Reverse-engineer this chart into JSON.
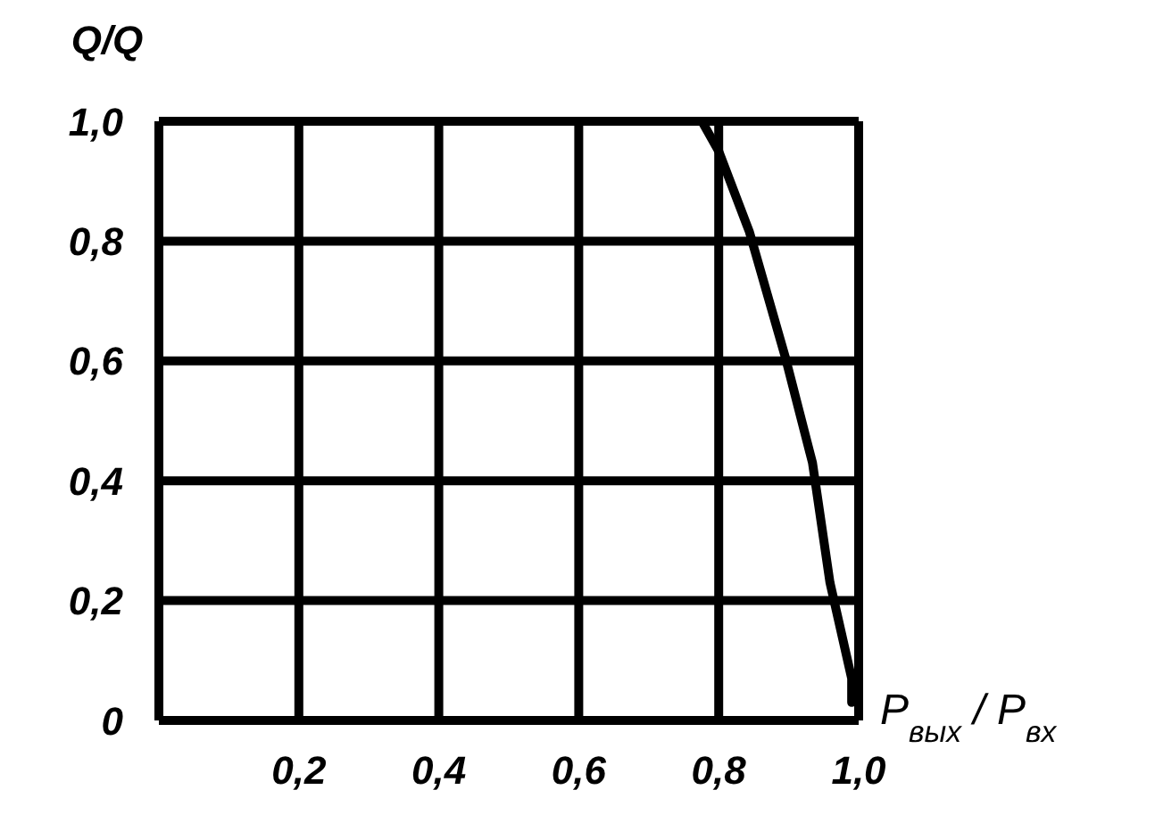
{
  "chart_data": {
    "type": "line",
    "ylabel": "Q/Q",
    "xlabel": "P$_{вых}$ / P$_{вх}$",
    "x": [
      0.776,
      0.8,
      0.844,
      0.895,
      0.934,
      0.959,
      0.99,
      0.99
    ],
    "series": [
      {
        "color": "#000000",
        "values": [
          1.0,
          0.95,
          0.815,
          0.607,
          0.43,
          0.23,
          0.07,
          0.03
        ]
      }
    ],
    "xlim": [
      0,
      1
    ],
    "ylim": [
      0,
      1
    ],
    "xticks": [
      {
        "value": 0.2,
        "label": "0,2"
      },
      {
        "value": 0.4,
        "label": "0,4"
      },
      {
        "value": 0.6,
        "label": "0,6"
      },
      {
        "value": 0.8,
        "label": "0,8"
      },
      {
        "value": 1.0,
        "label": "1,0"
      }
    ],
    "yticks": [
      0,
      {
        "value": 0.2,
        "label": "0,2"
      },
      {
        "value": 0.4,
        "label": "0,4"
      },
      {
        "value": 0.6,
        "label": "0,6"
      },
      {
        "value": 0.8,
        "label": "0,8"
      },
      {
        "value": 1.0,
        "label": "1,0"
      }
    ],
    "grid": true,
    "marker": "none",
    "line_style": "solid"
  }
}
